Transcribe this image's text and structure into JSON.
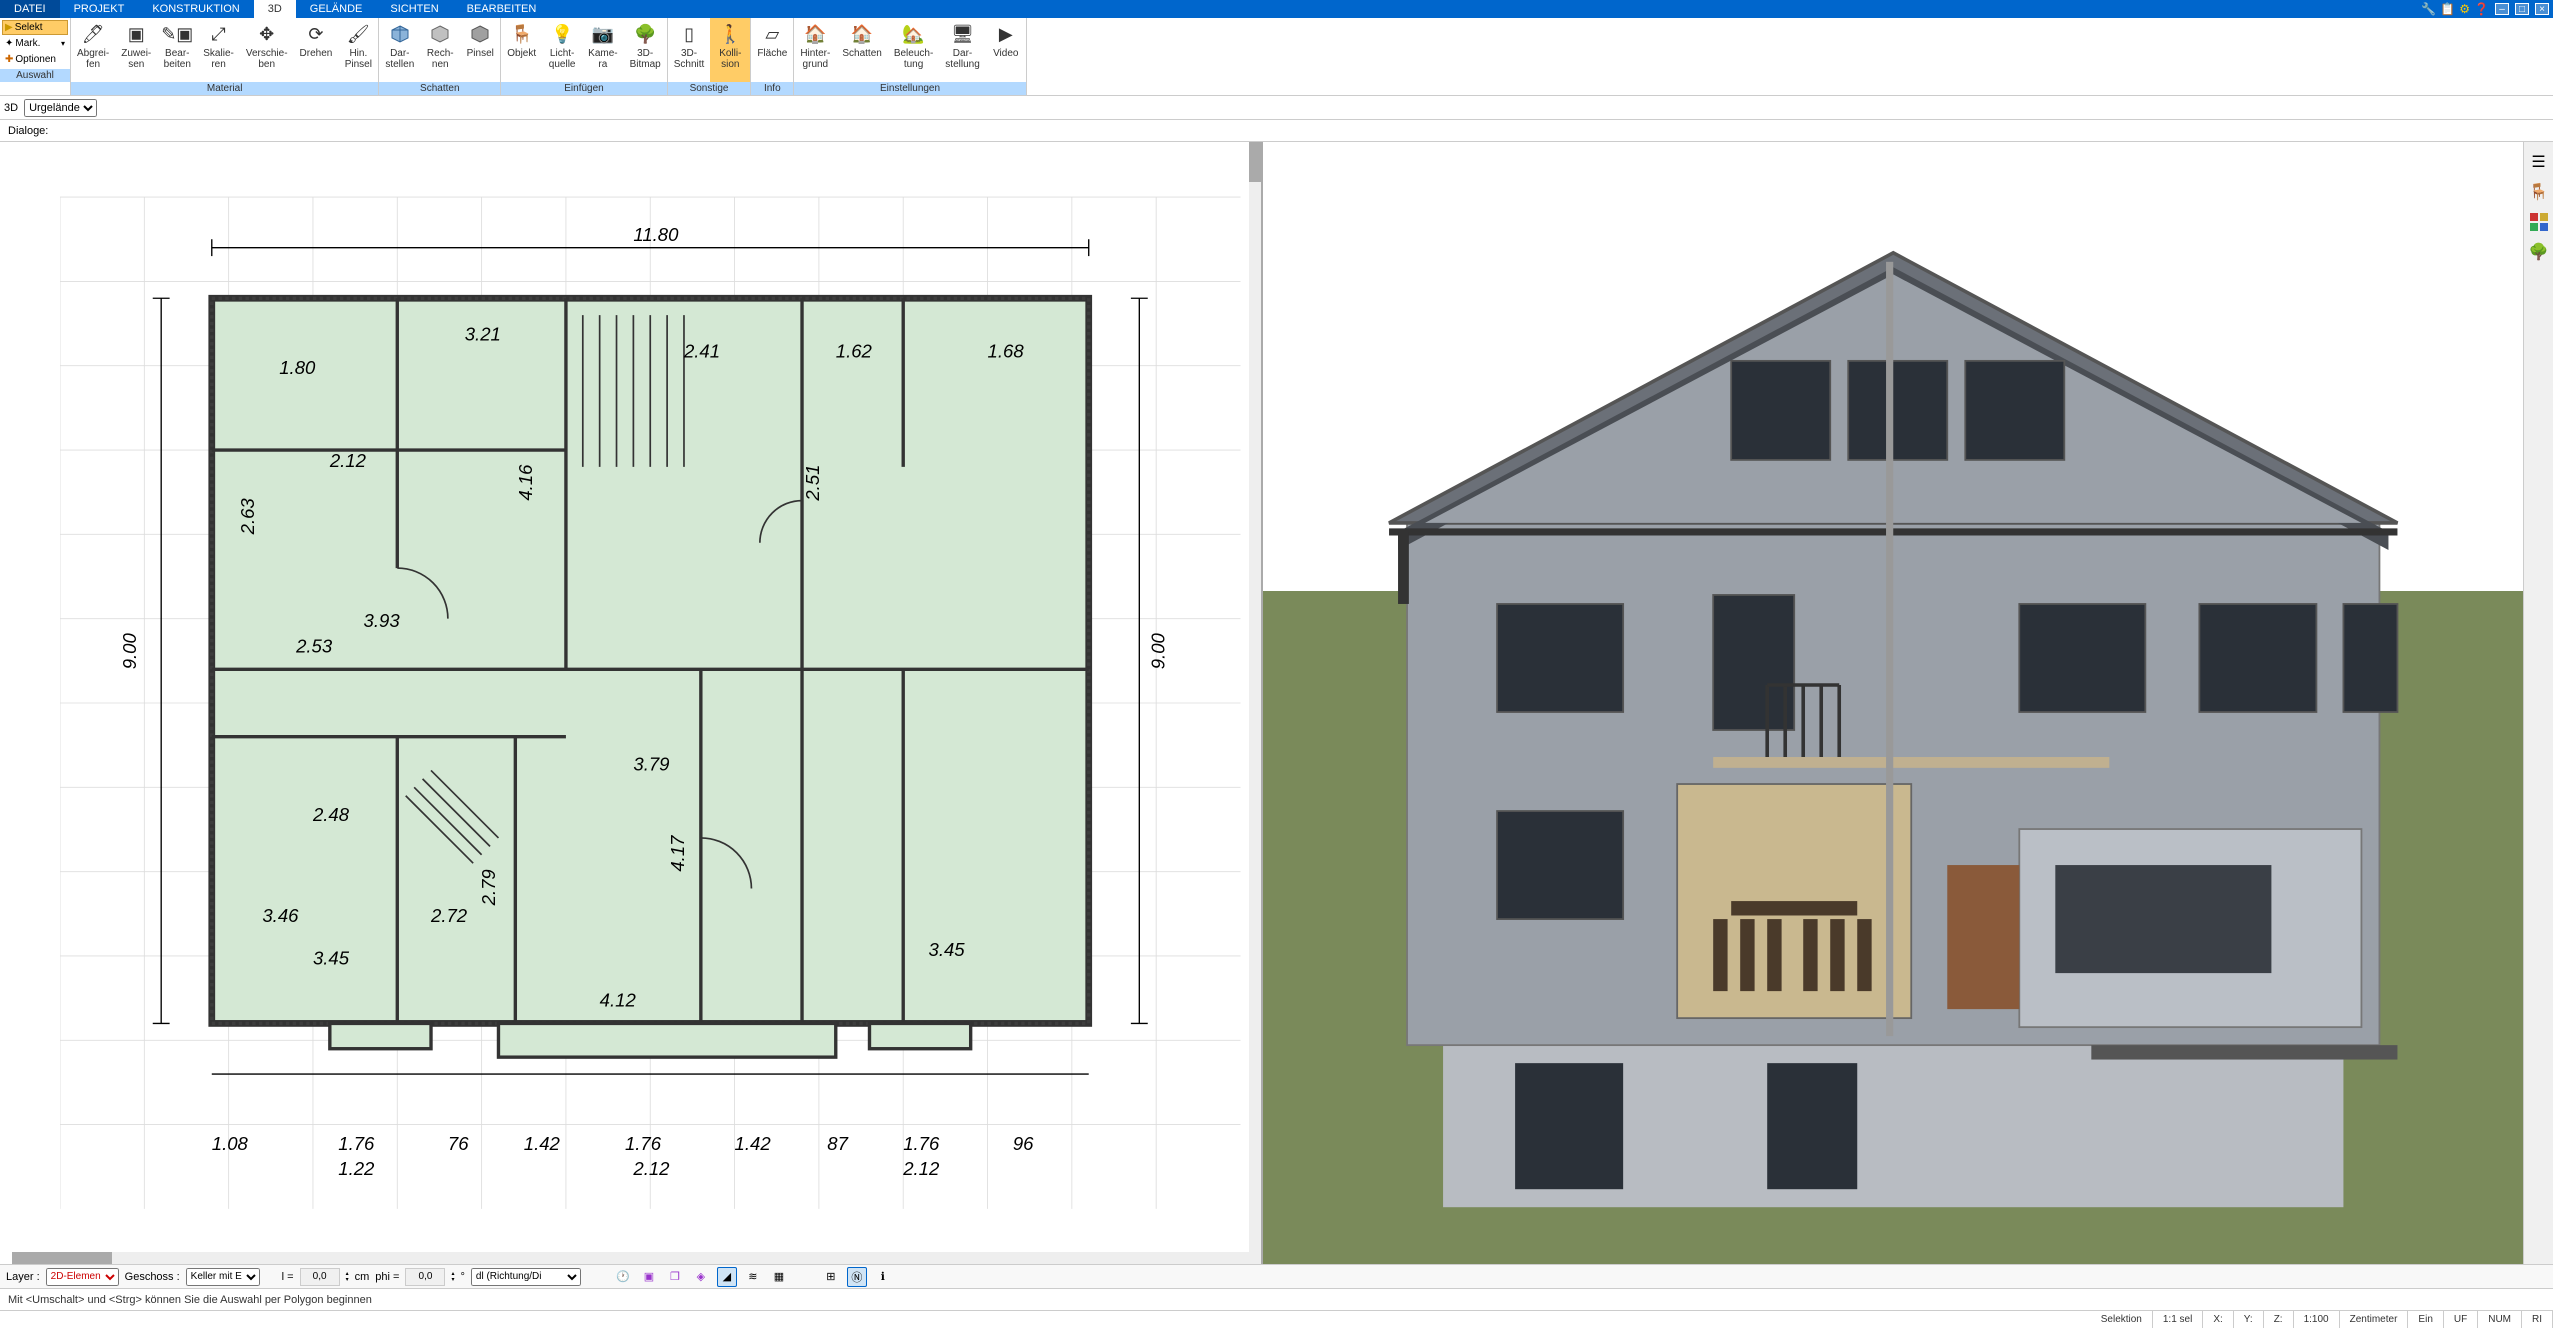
{
  "menubar": {
    "items": [
      "DATEI",
      "PROJEKT",
      "KONSTRUKTION",
      "3D",
      "GELÄNDE",
      "SICHTEN",
      "BEARBEITEN"
    ],
    "active_index": 3
  },
  "selection_panel": {
    "selekt": "Selekt",
    "mark": "Mark.",
    "optionen": "Optionen"
  },
  "ribbon": {
    "sections": [
      {
        "title": "Auswahl",
        "buttons": []
      },
      {
        "title": "Material",
        "buttons": [
          {
            "label": "Abgrei-\nfen"
          },
          {
            "label": "Zuwei-\nsen"
          },
          {
            "label": "Bear-\nbeiten"
          },
          {
            "label": "Skalie-\nren"
          },
          {
            "label": "Verschie-\nben"
          },
          {
            "label": "Drehen"
          },
          {
            "label": "Hin.\nPinsel"
          }
        ]
      },
      {
        "title": "Schatten",
        "buttons": [
          {
            "label": "Dar-\nstellen"
          },
          {
            "label": "Rech-\nnen"
          },
          {
            "label": "Pinsel"
          }
        ]
      },
      {
        "title": "Einfügen",
        "buttons": [
          {
            "label": "Objekt"
          },
          {
            "label": "Licht-\nquelle"
          },
          {
            "label": "Kame-\nra"
          },
          {
            "label": "3D-\nBitmap"
          }
        ]
      },
      {
        "title": "Sonstige",
        "buttons": [
          {
            "label": "3D-\nSchnitt"
          },
          {
            "label": "Kolli-\nsion",
            "highlighted": true
          }
        ]
      },
      {
        "title": "Info",
        "buttons": [
          {
            "label": "Fläche"
          }
        ]
      },
      {
        "title": "Einstellungen",
        "buttons": [
          {
            "label": "Hinter-\ngrund"
          },
          {
            "label": "Schatten"
          },
          {
            "label": "Beleuch-\ntung"
          },
          {
            "label": "Dar-\nstellung"
          },
          {
            "label": "Video"
          }
        ]
      }
    ]
  },
  "subtoolbar": {
    "mode": "3D",
    "layer": "Urgelände"
  },
  "dialoge_label": "Dialoge:",
  "bottom": {
    "layer_label": "Layer :",
    "layer_value": "2D-Elemen",
    "geschoss_label": "Geschoss :",
    "geschoss_value": "Keller mit E",
    "l_label": "l =",
    "l_value": "0,0",
    "l_unit": "cm",
    "phi_label": "phi =",
    "phi_value": "0,0",
    "phi_unit": "°",
    "dl_value": "dl (Richtung/Di"
  },
  "status1": "Mit <Umschalt> und <Strg> können Sie die Auswahl per Polygon beginnen",
  "status2": {
    "selektion": "Selektion",
    "sel_ratio": "1:1 sel",
    "x": "X:",
    "y": "Y:",
    "z": "Z:",
    "scale": "1:100",
    "unit": "Zentimeter",
    "ein": "Ein",
    "uf": "UF",
    "num": "NUM",
    "ri": "RI"
  },
  "floorplan_dims": {
    "top_width": "11.80",
    "left_height": "9.00",
    "right_height": "9.00",
    "rooms": [
      "1.80",
      "3.21",
      "2.41",
      "1.62",
      "1.68",
      "2.12",
      "2.53",
      "3.93",
      "2.48",
      "3.46",
      "2.72",
      "4.12",
      "3.45",
      "3.79",
      "3.45",
      "2.79",
      "4.17",
      "4.16",
      "2.51",
      "2.63"
    ],
    "bottom": [
      "1.08",
      "1.76",
      "76",
      "1.42",
      "1.76",
      "1.42",
      "87",
      "1.76",
      "96"
    ],
    "bottom2": [
      "1.22",
      "2.12",
      "2.12"
    ]
  },
  "colors": {
    "menubar_bg": "#0066cc",
    "menubar_first": "#004a99",
    "ribbon_title_bg": "#b3d9ff",
    "highlight": "#ffcc66",
    "floorplan_fill": "#d4e8d4",
    "floorplan_line": "#333333",
    "terrain": "#7a8a5a",
    "house_wall": "#9aa0a8",
    "house_roof": "#6b7078"
  }
}
